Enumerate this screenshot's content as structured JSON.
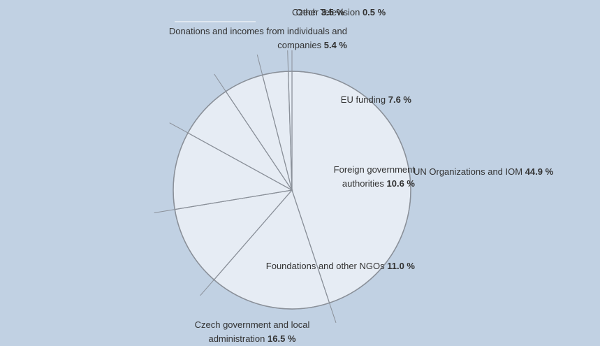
{
  "chart_data": {
    "type": "pie",
    "categories": [
      "UN Organizations and IOM",
      "Czech government and local administration",
      "Foundations and other NGOs",
      "Foreign government authorities",
      "EU funding",
      "Donations and incomes from individuals and companies",
      "Other",
      "Czech Television"
    ],
    "values": [
      44.9,
      16.5,
      11.0,
      10.6,
      7.6,
      5.4,
      3.5,
      0.5
    ],
    "value_labels": [
      "44.9 %",
      "16.5 %",
      "11.0 %",
      "10.6 %",
      "7.6 %",
      "5.4 %",
      "3.5 %",
      "0.5 %"
    ],
    "color": "#e6ecf4"
  }
}
